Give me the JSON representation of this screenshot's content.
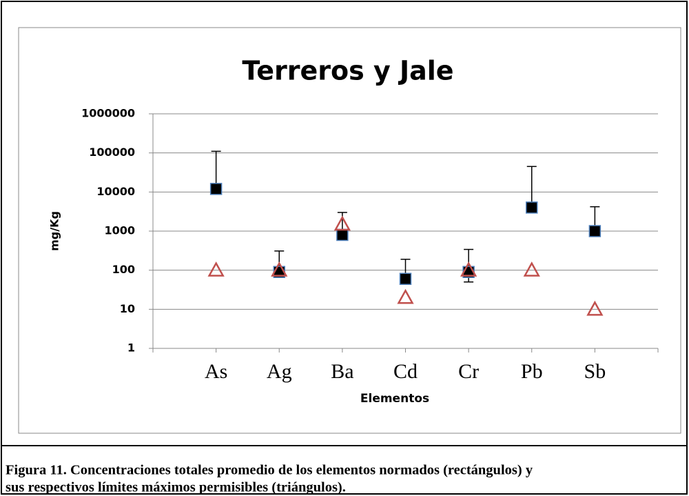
{
  "chart_data": {
    "type": "scatter",
    "title": "Terreros y Jale",
    "x_label": "Elementos",
    "y_label": "mg/Kg",
    "categories": [
      "As",
      "Ag",
      "Ba",
      "Cd",
      "Cr",
      "Pb",
      "Sb"
    ],
    "log_y": true,
    "grid": true,
    "ylim": [
      1,
      1000000
    ],
    "yticks": [
      1,
      10,
      100,
      1000,
      10000,
      100000,
      1000000
    ],
    "series": [
      {
        "marker": "square",
        "color": "#000000",
        "edge": "#4f81bd",
        "values": [
          12000,
          90,
          800,
          60,
          90,
          4000,
          1000
        ],
        "error_high": [
          110000,
          310,
          3000,
          190,
          340,
          45000,
          4200
        ],
        "error_low": [
          null,
          null,
          null,
          null,
          50,
          null,
          null
        ]
      },
      {
        "marker": "triangle",
        "color": "#c0504d",
        "values": [
          100,
          100,
          1500,
          20,
          100,
          100,
          10
        ]
      }
    ],
    "caption": [
      "Figura 11. Concentraciones totales promedio de los elementos normados (rectángulos) y",
      "sus respectivos límites máximos permisibles (triángulos)."
    ]
  }
}
